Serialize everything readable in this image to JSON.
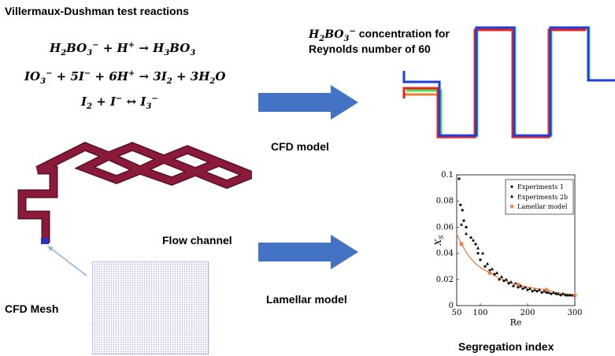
{
  "title": "Villermaux-Dushman test reactions",
  "equations": {
    "eq1": {
      "lhs_a": "H",
      "lhs_a_sub": "2",
      "lhs_b": "BO",
      "lhs_b_sub": "3",
      "lhs_b_sup": "−",
      "plus1": " + ",
      "lhs_c": "H",
      "lhs_c_sup": "+",
      "arrow": " → ",
      "rhs": "H",
      "rhs_sub": "3",
      "rhs_b": "BO",
      "rhs_b_sub": "3"
    },
    "eq2_text": "IO₃⁻ + 5I⁻ + 6H⁺ → 3I₂ + 3H₂O",
    "eq3_text": "I₂ + I⁻ ↔ I₃⁻"
  },
  "concentration_label": {
    "species": "H₂BO₃⁻",
    "line1_rest": " concentration for",
    "line2": "Reynolds number of 60"
  },
  "cfd_model_label": "CFD model",
  "lamellar_model_label": "Lamellar model",
  "flow_channel_label": "Flow channel",
  "cfd_mesh_label": "CFD Mesh",
  "segregation_label": "Segregation index",
  "colors": {
    "arrow": "#4472c4",
    "channel": "#8b1a3a",
    "mesh": "#8c8ce6",
    "red": "#e8231c",
    "blue": "#1f3fe0",
    "green": "#4de04d",
    "orange": "#e87a3c"
  },
  "chart_data": {
    "type": "scatter",
    "xlabel": "Re",
    "ylabel": "X_S",
    "xlim": [
      50,
      300
    ],
    "ylim": [
      0,
      0.1
    ],
    "xticks": [
      "50",
      "100",
      "200",
      "300"
    ],
    "yticks": [
      "0",
      "0.02",
      "0.04",
      "0.06",
      "0.08",
      "0.1"
    ],
    "legend_position": "top-right",
    "series": [
      {
        "name": "Experiments 1",
        "marker": "dot",
        "points": [
          [
            55,
            0.097
          ],
          [
            58,
            0.077
          ],
          [
            62,
            0.073
          ],
          [
            65,
            0.065
          ],
          [
            70,
            0.06
          ],
          [
            80,
            0.052
          ],
          [
            90,
            0.047
          ],
          [
            95,
            0.04
          ],
          [
            100,
            0.035
          ],
          [
            110,
            0.03
          ],
          [
            120,
            0.027
          ],
          [
            130,
            0.024
          ],
          [
            140,
            0.02
          ],
          [
            150,
            0.019
          ],
          [
            160,
            0.017
          ],
          [
            170,
            0.015
          ],
          [
            180,
            0.014
          ],
          [
            190,
            0.013
          ],
          [
            200,
            0.012
          ],
          [
            210,
            0.011
          ],
          [
            220,
            0.011
          ],
          [
            230,
            0.01
          ],
          [
            240,
            0.01
          ],
          [
            250,
            0.009
          ],
          [
            260,
            0.009
          ],
          [
            270,
            0.008
          ],
          [
            280,
            0.008
          ],
          [
            290,
            0.008
          ]
        ]
      },
      {
        "name": "Experiments 2b",
        "marker": "triangle",
        "points": [
          [
            60,
            0.062
          ],
          [
            70,
            0.055
          ],
          [
            85,
            0.05
          ],
          [
            95,
            0.044
          ],
          [
            105,
            0.04
          ],
          [
            115,
            0.032
          ],
          [
            125,
            0.028
          ],
          [
            135,
            0.025
          ],
          [
            145,
            0.022
          ],
          [
            155,
            0.02
          ],
          [
            165,
            0.018
          ],
          [
            175,
            0.017
          ],
          [
            185,
            0.015
          ],
          [
            195,
            0.014
          ],
          [
            205,
            0.013
          ],
          [
            215,
            0.012
          ],
          [
            225,
            0.012
          ],
          [
            235,
            0.011
          ],
          [
            245,
            0.01
          ],
          [
            255,
            0.01
          ],
          [
            265,
            0.009
          ],
          [
            275,
            0.009
          ],
          [
            285,
            0.008
          ],
          [
            295,
            0.008
          ]
        ]
      },
      {
        "name": "Lamellar model",
        "marker": "star",
        "points": [
          [
            60,
            0.047
          ],
          [
            120,
            0.025
          ],
          [
            180,
            0.016
          ],
          [
            240,
            0.012
          ],
          [
            300,
            0.008
          ]
        ]
      }
    ],
    "fit_curve": [
      [
        50,
        0.055
      ],
      [
        60,
        0.047
      ],
      [
        75,
        0.038
      ],
      [
        90,
        0.032
      ],
      [
        105,
        0.028
      ],
      [
        120,
        0.025
      ],
      [
        140,
        0.021
      ],
      [
        160,
        0.018
      ],
      [
        180,
        0.016
      ],
      [
        200,
        0.014
      ],
      [
        220,
        0.013
      ],
      [
        240,
        0.012
      ],
      [
        260,
        0.01
      ],
      [
        280,
        0.009
      ],
      [
        300,
        0.008
      ]
    ]
  }
}
